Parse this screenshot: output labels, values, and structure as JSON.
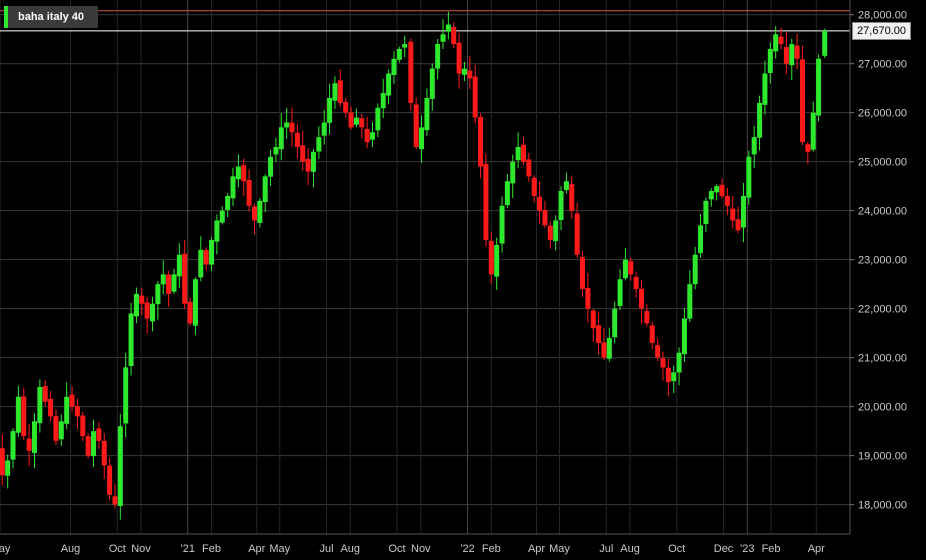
{
  "instrument": {
    "name": "baha italy 40",
    "last_price_label": "27,670.00",
    "up_color": "#2ee82e",
    "down_color": "#ff1a1a"
  },
  "chart_data": {
    "type": "candlestick",
    "title": "",
    "series_name": "baha italy 40",
    "y_range": [
      17400,
      28300
    ],
    "y_ticks": [
      {
        "value": 18000,
        "label": "18,000.00"
      },
      {
        "value": 19000,
        "label": "19,000.00"
      },
      {
        "value": 20000,
        "label": "20,000.00"
      },
      {
        "value": 21000,
        "label": "21,000.00"
      },
      {
        "value": 22000,
        "label": "22,000.00"
      },
      {
        "value": 23000,
        "label": "23,000.00"
      },
      {
        "value": 24000,
        "label": "24,000.00"
      },
      {
        "value": 25000,
        "label": "25,000.00"
      },
      {
        "value": 26000,
        "label": "26,000.00"
      },
      {
        "value": 27000,
        "label": "27,000.00"
      },
      {
        "value": 28000,
        "label": "28,000.00"
      }
    ],
    "x_ticks": [
      {
        "date": "2020-05-01",
        "label": "May"
      },
      {
        "date": "2020-08-01",
        "label": "Aug"
      },
      {
        "date": "2020-10-01",
        "label": "Oct"
      },
      {
        "date": "2020-11-01",
        "label": "Nov"
      },
      {
        "date": "2021-01-01",
        "label": "'21"
      },
      {
        "date": "2021-02-01",
        "label": "Feb"
      },
      {
        "date": "2021-04-01",
        "label": "Apr"
      },
      {
        "date": "2021-05-01",
        "label": "May"
      },
      {
        "date": "2021-07-01",
        "label": "Jul"
      },
      {
        "date": "2021-08-01",
        "label": "Aug"
      },
      {
        "date": "2021-10-01",
        "label": "Oct"
      },
      {
        "date": "2021-11-01",
        "label": "Nov"
      },
      {
        "date": "2022-01-01",
        "label": "'22"
      },
      {
        "date": "2022-02-01",
        "label": "Feb"
      },
      {
        "date": "2022-04-01",
        "label": "Apr"
      },
      {
        "date": "2022-05-01",
        "label": "May"
      },
      {
        "date": "2022-07-01",
        "label": "Jul"
      },
      {
        "date": "2022-08-01",
        "label": "Aug"
      },
      {
        "date": "2022-10-01",
        "label": "Oct"
      },
      {
        "date": "2022-12-01",
        "label": "Dec"
      },
      {
        "date": "2023-01-01",
        "label": "'23"
      },
      {
        "date": "2023-02-01",
        "label": "Feb"
      },
      {
        "date": "2023-04-01",
        "label": "Apr"
      }
    ],
    "x_range": [
      "2020-05-01",
      "2023-05-15"
    ],
    "reference_lines": [
      {
        "value": 28080,
        "color": "#d9534f"
      },
      {
        "value": 27670,
        "color": "#ffffff"
      }
    ],
    "closes": [
      20000,
      19200,
      18600,
      18900,
      19500,
      20200,
      19400,
      19100,
      19700,
      20400,
      20100,
      19800,
      19300,
      19700,
      20200,
      20000,
      19800,
      19400,
      19000,
      19500,
      19300,
      18800,
      18200,
      18000,
      19600,
      20800,
      21900,
      22300,
      22100,
      21800,
      22100,
      22500,
      22700,
      22300,
      22700,
      23100,
      22100,
      21700,
      22600,
      23200,
      22900,
      23400,
      23800,
      24000,
      24300,
      24700,
      24900,
      24600,
      24100,
      23800,
      24200,
      24700,
      25100,
      25300,
      25700,
      25800,
      25600,
      25300,
      25000,
      24800,
      25200,
      25500,
      25800,
      26300,
      26600,
      26200,
      26000,
      25700,
      25900,
      25700,
      25400,
      25600,
      26100,
      26400,
      26800,
      27100,
      27300,
      27400,
      26200,
      25300,
      25700,
      26300,
      26900,
      27400,
      27600,
      27800,
      27400,
      26800,
      26900,
      26700,
      25900,
      24900,
      23400,
      22700,
      23300,
      24100,
      24600,
      25000,
      25300,
      25000,
      24700,
      24300,
      24000,
      23700,
      23400,
      23800,
      24400,
      24600,
      24000,
      23100,
      22400,
      22000,
      21600,
      21300,
      21000,
      21400,
      22000,
      22600,
      23000,
      22700,
      22400,
      22000,
      21700,
      21300,
      21000,
      20800,
      20500,
      20700,
      21100,
      21800,
      22500,
      23100,
      23700,
      24200,
      24400,
      24500,
      24300,
      24100,
      23800,
      23600,
      24300,
      25100,
      25500,
      26200,
      26800,
      27300,
      27600,
      27400,
      27000,
      27400,
      27100,
      25400,
      25200,
      26000,
      27100,
      27670
    ]
  }
}
